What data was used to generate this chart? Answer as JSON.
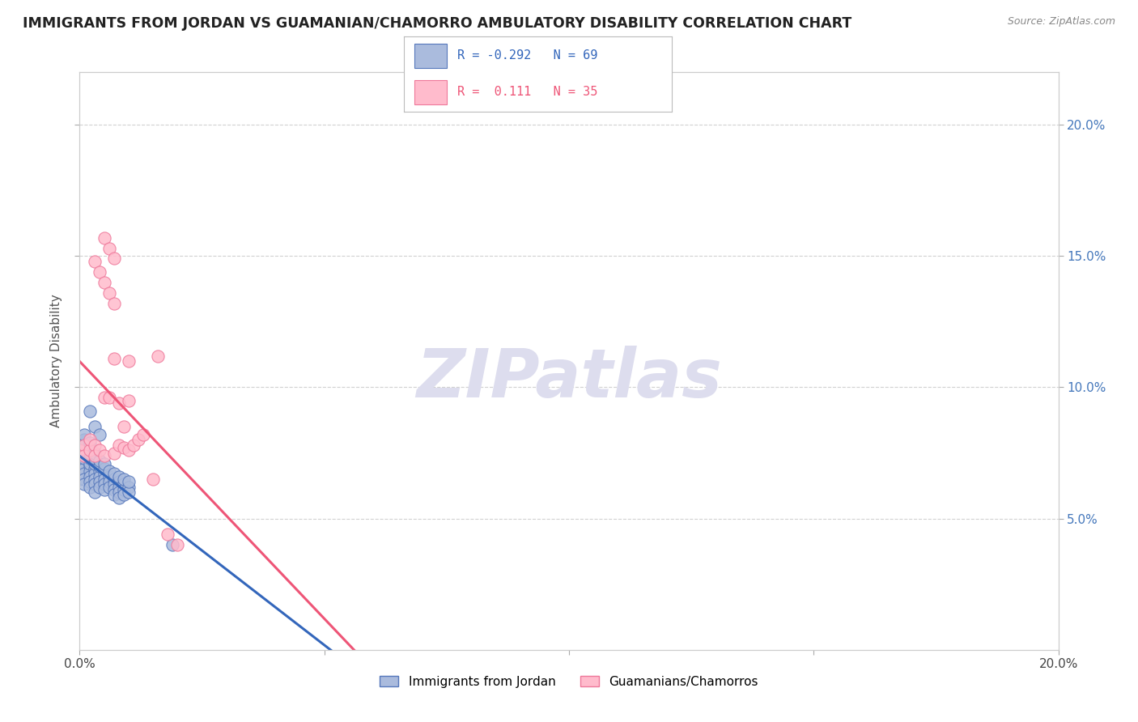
{
  "title": "IMMIGRANTS FROM JORDAN VS GUAMANIAN/CHAMORRO AMBULATORY DISABILITY CORRELATION CHART",
  "source": "Source: ZipAtlas.com",
  "ylabel": "Ambulatory Disability",
  "legend_blue_R": "-0.292",
  "legend_blue_N": "69",
  "legend_pink_R": "0.111",
  "legend_pink_N": "35",
  "legend_blue_label": "Immigrants from Jordan",
  "legend_pink_label": "Guamanians/Chamorros",
  "watermark": "ZIPatlas",
  "xlim": [
    0.0,
    0.2
  ],
  "ylim": [
    0.0,
    0.22
  ],
  "yticks": [
    0.05,
    0.1,
    0.15,
    0.2
  ],
  "ytick_labels": [
    "5.0%",
    "10.0%",
    "15.0%",
    "20.0%"
  ],
  "blue_scatter": [
    [
      0.0,
      0.07
    ],
    [
      0.0,
      0.068
    ],
    [
      0.0,
      0.065
    ],
    [
      0.0,
      0.072
    ],
    [
      0.001,
      0.071
    ],
    [
      0.001,
      0.069
    ],
    [
      0.001,
      0.073
    ],
    [
      0.001,
      0.067
    ],
    [
      0.001,
      0.065
    ],
    [
      0.001,
      0.063
    ],
    [
      0.001,
      0.075
    ],
    [
      0.001,
      0.078
    ],
    [
      0.001,
      0.08
    ],
    [
      0.001,
      0.082
    ],
    [
      0.002,
      0.07
    ],
    [
      0.002,
      0.068
    ],
    [
      0.002,
      0.066
    ],
    [
      0.002,
      0.071
    ],
    [
      0.002,
      0.073
    ],
    [
      0.002,
      0.075
    ],
    [
      0.002,
      0.064
    ],
    [
      0.002,
      0.062
    ],
    [
      0.002,
      0.077
    ],
    [
      0.002,
      0.079
    ],
    [
      0.003,
      0.069
    ],
    [
      0.003,
      0.067
    ],
    [
      0.003,
      0.071
    ],
    [
      0.003,
      0.065
    ],
    [
      0.003,
      0.073
    ],
    [
      0.003,
      0.063
    ],
    [
      0.003,
      0.075
    ],
    [
      0.003,
      0.06
    ],
    [
      0.004,
      0.068
    ],
    [
      0.004,
      0.066
    ],
    [
      0.004,
      0.07
    ],
    [
      0.004,
      0.064
    ],
    [
      0.004,
      0.072
    ],
    [
      0.004,
      0.062
    ],
    [
      0.005,
      0.067
    ],
    [
      0.005,
      0.065
    ],
    [
      0.005,
      0.069
    ],
    [
      0.005,
      0.063
    ],
    [
      0.005,
      0.071
    ],
    [
      0.005,
      0.061
    ],
    [
      0.006,
      0.066
    ],
    [
      0.006,
      0.064
    ],
    [
      0.006,
      0.068
    ],
    [
      0.006,
      0.062
    ],
    [
      0.007,
      0.065
    ],
    [
      0.007,
      0.063
    ],
    [
      0.007,
      0.067
    ],
    [
      0.007,
      0.061
    ],
    [
      0.007,
      0.059
    ],
    [
      0.008,
      0.064
    ],
    [
      0.008,
      0.062
    ],
    [
      0.008,
      0.066
    ],
    [
      0.008,
      0.06
    ],
    [
      0.008,
      0.058
    ],
    [
      0.009,
      0.063
    ],
    [
      0.009,
      0.061
    ],
    [
      0.009,
      0.065
    ],
    [
      0.009,
      0.059
    ],
    [
      0.01,
      0.062
    ],
    [
      0.01,
      0.06
    ],
    [
      0.01,
      0.064
    ],
    [
      0.002,
      0.091
    ],
    [
      0.003,
      0.085
    ],
    [
      0.004,
      0.082
    ],
    [
      0.019,
      0.04
    ]
  ],
  "pink_scatter": [
    [
      0.0,
      0.076
    ],
    [
      0.001,
      0.078
    ],
    [
      0.001,
      0.074
    ],
    [
      0.002,
      0.076
    ],
    [
      0.002,
      0.08
    ],
    [
      0.003,
      0.078
    ],
    [
      0.003,
      0.074
    ],
    [
      0.003,
      0.148
    ],
    [
      0.004,
      0.076
    ],
    [
      0.004,
      0.144
    ],
    [
      0.005,
      0.074
    ],
    [
      0.005,
      0.14
    ],
    [
      0.005,
      0.157
    ],
    [
      0.005,
      0.096
    ],
    [
      0.006,
      0.096
    ],
    [
      0.006,
      0.136
    ],
    [
      0.006,
      0.153
    ],
    [
      0.007,
      0.132
    ],
    [
      0.007,
      0.075
    ],
    [
      0.007,
      0.149
    ],
    [
      0.007,
      0.111
    ],
    [
      0.008,
      0.094
    ],
    [
      0.008,
      0.078
    ],
    [
      0.009,
      0.085
    ],
    [
      0.009,
      0.077
    ],
    [
      0.01,
      0.095
    ],
    [
      0.01,
      0.076
    ],
    [
      0.01,
      0.11
    ],
    [
      0.011,
      0.078
    ],
    [
      0.012,
      0.08
    ],
    [
      0.013,
      0.082
    ],
    [
      0.015,
      0.065
    ],
    [
      0.016,
      0.112
    ],
    [
      0.018,
      0.044
    ],
    [
      0.02,
      0.04
    ]
  ],
  "blue_color": "#AABBDD",
  "pink_color": "#FFBBCC",
  "blue_edge_color": "#5577BB",
  "pink_edge_color": "#EE7799",
  "blue_line_color": "#3366BB",
  "pink_line_color": "#EE5577",
  "bg_color": "#FFFFFF",
  "grid_color": "#CCCCCC",
  "title_color": "#222222",
  "watermark_color": "#DDDDEE",
  "axis_label_color": "#4477BB"
}
